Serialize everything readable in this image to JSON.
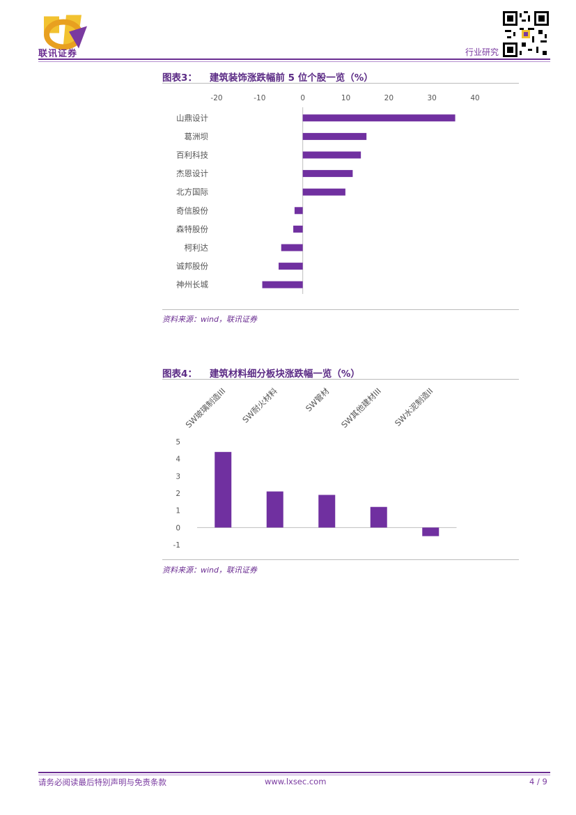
{
  "header": {
    "company_name": "联讯证券",
    "report_type": "行业研究"
  },
  "figure3": {
    "number": "图表3：",
    "title": "建筑装饰涨跌幅前 5 位个股一览（%）",
    "source": "资料来源：wind，联讯证券"
  },
  "figure4": {
    "number": "图表4：",
    "title": "建筑材料细分板块涨跌幅一览（%）",
    "source": "资料来源：wind，联讯证券"
  },
  "chart_data": [
    {
      "type": "bar",
      "orientation": "horizontal",
      "categories": [
        "山鼎设计",
        "葛洲坝",
        "百利科技",
        "杰恩设计",
        "北方国际",
        "奇信股份",
        "森特股份",
        "柯利达",
        "诚邦股份",
        "神州长城"
      ],
      "values": [
        35.4,
        14.8,
        13.5,
        11.6,
        9.9,
        -1.9,
        -2.2,
        -5.0,
        -5.6,
        -9.4
      ],
      "xlim": [
        -20,
        40
      ],
      "xticks": [
        -20,
        -10,
        0,
        10,
        20,
        30,
        40
      ],
      "grid": false,
      "color": "#7030a0"
    },
    {
      "type": "bar",
      "categories": [
        "SW玻璃制造III",
        "SW耐火材料",
        "SW管材",
        "SW其他建材III",
        "SW水泥制造II"
      ],
      "values": [
        4.4,
        2.1,
        1.9,
        1.2,
        -0.5
      ],
      "ylim": [
        -1,
        5
      ],
      "yticks": [
        -1,
        0,
        1,
        2,
        3,
        4,
        5
      ],
      "grid": false,
      "color": "#7030a0"
    }
  ],
  "footer": {
    "disclaimer": "请务必阅读最后特别声明与免责条款",
    "website": "www.lxsec.com",
    "page": "4 / 9"
  }
}
